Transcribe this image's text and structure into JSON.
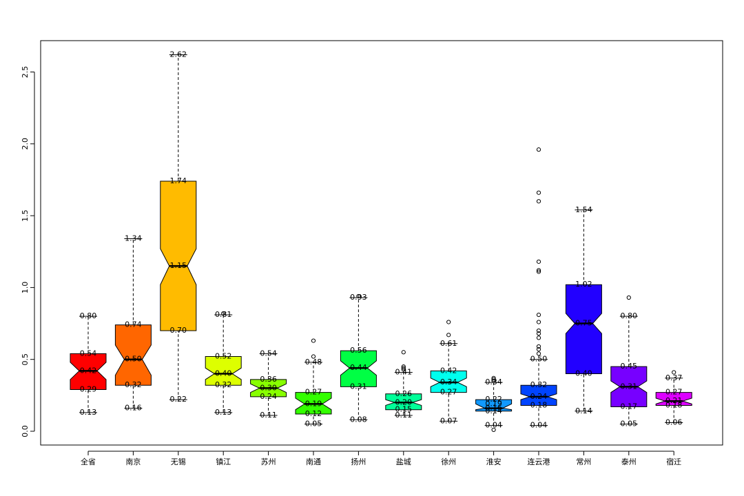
{
  "chart_data": {
    "type": "box",
    "notched": true,
    "ylim": [
      -0.1,
      2.72
    ],
    "y_ticks": [
      "0.0",
      "0.5",
      "1.0",
      "1.5",
      "2.0",
      "2.5"
    ],
    "y_tick_values": [
      0,
      0.5,
      1.0,
      1.5,
      2.0,
      2.5
    ],
    "categories": [
      "全省",
      "南京",
      "无锡",
      "镇江",
      "苏州",
      "南通",
      "扬州",
      "盐城",
      "徐州",
      "淮安",
      "连云港",
      "常州",
      "泰州",
      "宿迁"
    ],
    "colors": [
      "#ff0000",
      "#ff6600",
      "#ffbb00",
      "#ddff00",
      "#88ff00",
      "#33ff00",
      "#00ff44",
      "#00ff99",
      "#00ffee",
      "#1199ff",
      "#0044ff",
      "#2200ff",
      "#7700ff",
      "#dd00ff"
    ],
    "boxes": [
      {
        "min": 0.13,
        "q1": 0.29,
        "median": 0.42,
        "q3": 0.54,
        "max": 0.8,
        "notch": [
          0.36,
          0.48
        ],
        "outliers": [],
        "labels": [
          "0.80",
          "0.54",
          "0.42",
          "0.29",
          "0.13"
        ]
      },
      {
        "min": 0.16,
        "q1": 0.32,
        "median": 0.5,
        "q3": 0.74,
        "max": 1.34,
        "notch": [
          0.39,
          0.6
        ],
        "outliers": [],
        "labels": [
          "1.34",
          "0.74",
          "0.50",
          "0.32",
          "0.16"
        ]
      },
      {
        "min": 0.22,
        "q1": 0.7,
        "median": 1.15,
        "q3": 1.74,
        "max": 2.62,
        "notch": [
          1.02,
          1.27
        ],
        "outliers": [],
        "labels": [
          "2.62",
          "1.74",
          "1.15",
          "0.70",
          "0.22"
        ]
      },
      {
        "min": 0.13,
        "q1": 0.32,
        "median": 0.4,
        "q3": 0.52,
        "max": 0.81,
        "notch": [
          0.36,
          0.44
        ],
        "outliers": [
          0.82
        ],
        "labels": [
          "0.81",
          "0.52",
          "0.40",
          "0.32",
          "0.13"
        ]
      },
      {
        "min": 0.11,
        "q1": 0.24,
        "median": 0.3,
        "q3": 0.36,
        "max": 0.54,
        "notch": [
          0.27,
          0.33
        ],
        "outliers": [],
        "labels": [
          "0.54",
          "0.36",
          "0.30",
          "0.24",
          "0.11"
        ]
      },
      {
        "min": 0.05,
        "q1": 0.12,
        "median": 0.19,
        "q3": 0.27,
        "max": 0.48,
        "notch": [
          0.15,
          0.23
        ],
        "outliers": [
          0.52,
          0.63
        ],
        "labels": [
          "0.48",
          "0.27",
          "0.19",
          "0.12",
          "0.05"
        ]
      },
      {
        "min": 0.08,
        "q1": 0.31,
        "median": 0.44,
        "q3": 0.56,
        "max": 0.93,
        "notch": [
          0.39,
          0.49
        ],
        "outliers": [
          0.94
        ],
        "labels": [
          "0.93",
          "0.56",
          "0.44",
          "0.31",
          "0.08"
        ]
      },
      {
        "min": 0.11,
        "q1": 0.15,
        "median": 0.2,
        "q3": 0.26,
        "max": 0.41,
        "notch": [
          0.18,
          0.22
        ],
        "outliers": [
          0.43,
          0.44,
          0.45,
          0.55
        ],
        "labels": [
          "0.41",
          "0.26",
          "0.20",
          "0.15",
          "0.11"
        ]
      },
      {
        "min": 0.07,
        "q1": 0.27,
        "median": 0.34,
        "q3": 0.42,
        "max": 0.61,
        "notch": [
          0.31,
          0.37
        ],
        "outliers": [
          0.67,
          0.76
        ],
        "labels": [
          "0.61",
          "0.42",
          "0.34",
          "0.27",
          "0.07"
        ]
      },
      {
        "min": 0.04,
        "q1": 0.14,
        "median": 0.16,
        "q3": 0.22,
        "max": 0.34,
        "notch": [
          0.15,
          0.19
        ],
        "outliers": [
          0.01,
          0.35,
          0.36,
          0.37
        ],
        "labels": [
          "0.34",
          "0.22",
          "0.16",
          "0.19",
          "0.14",
          "0.04"
        ]
      },
      {
        "min": 0.04,
        "q1": 0.18,
        "median": 0.24,
        "q3": 0.32,
        "max": 0.5,
        "notch": [
          0.22,
          0.26
        ],
        "outliers": [
          0.54,
          0.57,
          0.59,
          0.65,
          0.68,
          0.7,
          0.76,
          0.81,
          1.11,
          1.12,
          1.18,
          1.6,
          1.66,
          1.96
        ],
        "labels": [
          "0.50",
          "0.32",
          "0.24",
          "0.18",
          "0.04"
        ]
      },
      {
        "min": 0.14,
        "q1": 0.4,
        "median": 0.75,
        "q3": 1.02,
        "max": 1.54,
        "notch": [
          0.68,
          0.82
        ],
        "outliers": [],
        "labels": [
          "1.54",
          "1.02",
          "0.75",
          "0.40",
          "0.14"
        ]
      },
      {
        "min": 0.05,
        "q1": 0.17,
        "median": 0.31,
        "q3": 0.45,
        "max": 0.8,
        "notch": [
          0.27,
          0.35
        ],
        "outliers": [
          0.93
        ],
        "labels": [
          "0.80",
          "0.45",
          "0.31",
          "0.17",
          "0.05"
        ]
      },
      {
        "min": 0.06,
        "q1": 0.18,
        "median": 0.21,
        "q3": 0.27,
        "max": 0.37,
        "notch": [
          0.19,
          0.23
        ],
        "outliers": [
          0.41
        ],
        "labels": [
          "0.37",
          "0.27",
          "0.21",
          "0.18",
          "0.06"
        ]
      }
    ]
  }
}
